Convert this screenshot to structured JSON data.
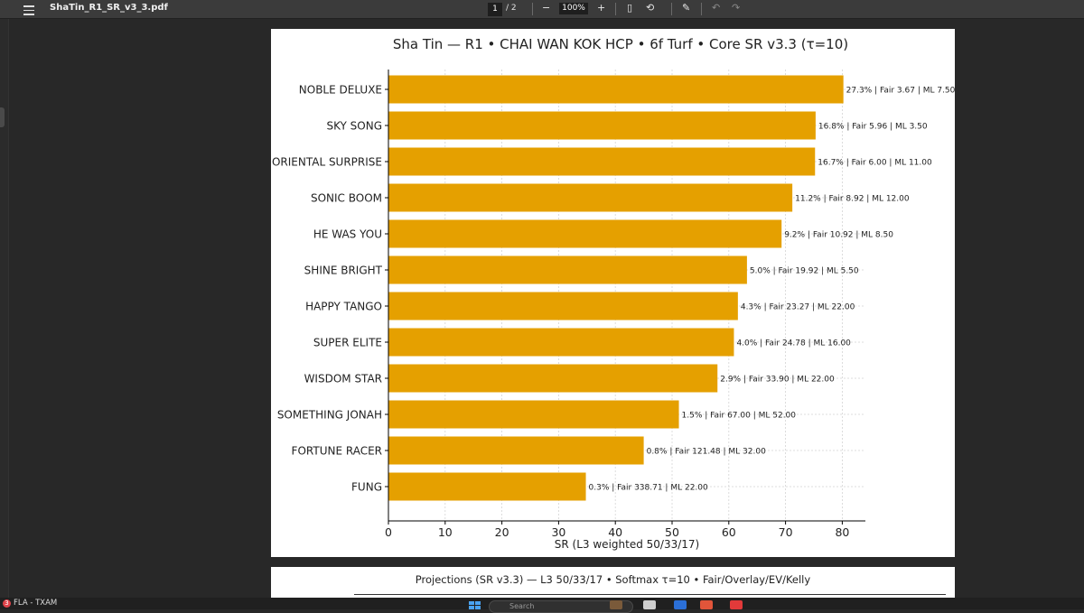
{
  "toolbar": {
    "doc_title": "ShaTin_R1_SR_v3_3.pdf",
    "page_current": "1",
    "page_total": "/ 2",
    "zoom_out": "−",
    "zoom": "100%",
    "zoom_in": "+"
  },
  "chart_data": {
    "type": "bar",
    "orientation": "horizontal",
    "title": "Sha Tin — R1 • CHAI WAN KOK HCP • 6f Turf • Core SR v3.3 (τ=10)",
    "xlabel": "SR (L3 weighted 50/33/17)",
    "ylabel": "",
    "xlim": [
      0,
      84
    ],
    "xticks": [
      0,
      10,
      20,
      30,
      40,
      50,
      60,
      70,
      80
    ],
    "grid": true,
    "bar_color": "#e5a000",
    "categories": [
      "NOBLE DELUXE",
      "SKY SONG",
      "ORIENTAL SURPRISE",
      "SONIC BOOM",
      "HE WAS YOU",
      "SHINE BRIGHT",
      "HAPPY TANGO",
      "SUPER ELITE",
      "WISDOM STAR",
      "SOMETHING JONAH",
      "FORTUNE RACER",
      "FUNG"
    ],
    "values": [
      80.2,
      75.3,
      75.2,
      71.2,
      69.3,
      63.2,
      61.6,
      60.9,
      58.0,
      51.2,
      45.0,
      34.8
    ],
    "data_labels": [
      "27.3% | Fair 3.67 | ML 7.50",
      "16.8% | Fair 5.96 | ML 3.50",
      "16.7% | Fair 6.00 | ML 11.00",
      "11.2% | Fair 8.92 | ML 12.00",
      "9.2% | Fair 10.92 | ML 8.50",
      "5.0% | Fair 19.92 | ML 5.50",
      "4.3% | Fair 23.27 | ML 22.00",
      "4.0% | Fair 24.78 | ML 16.00",
      "2.9% | Fair 33.90 | ML 22.00",
      "1.5% | Fair 67.00 | ML 52.00",
      "0.8% | Fair 121.48 | ML 32.00",
      "0.3% | Fair 338.71 | ML 22.00"
    ]
  },
  "page2": {
    "subtitle": "Projections (SR v3.3) — L3 50/33/17 • Softmax τ=10 • Fair/Overlay/EV/Kelly"
  },
  "taskbar": {
    "badge": "3",
    "app_label": "FLA - TXAM",
    "search_placeholder": "Search"
  }
}
